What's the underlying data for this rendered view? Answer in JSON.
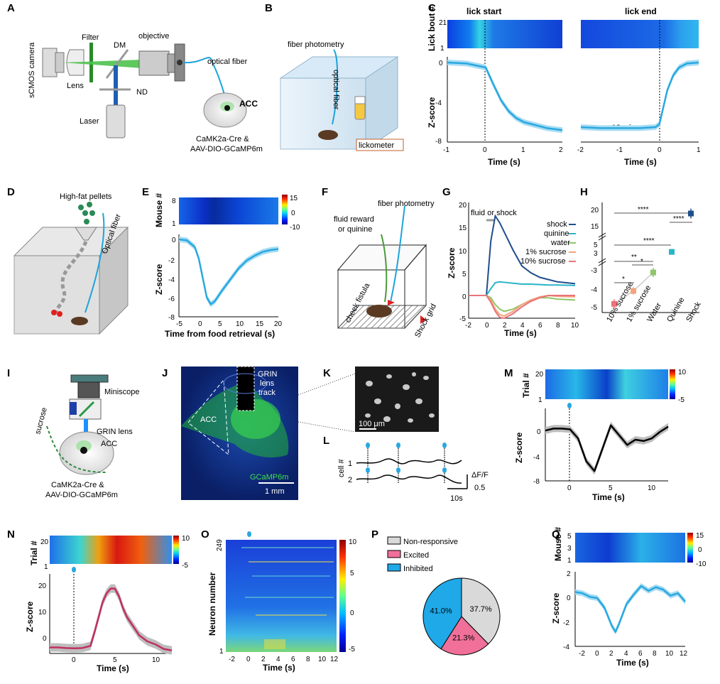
{
  "panels": {
    "A": "A",
    "B": "B",
    "C": "C",
    "D": "D",
    "E": "E",
    "F": "F",
    "G": "G",
    "H": "H",
    "I": "I",
    "J": "J",
    "K": "K",
    "L": "L",
    "M": "M",
    "N": "N",
    "O": "O",
    "P": "P",
    "Q": "Q"
  },
  "colors": {
    "trace": "#29a8e0",
    "band": "#a9dcf3",
    "dark": "#000000",
    "shock": "#1f4e8c",
    "quinine": "#2ab5c8",
    "water": "#8fc768",
    "sucrose1": "#f4a37c",
    "sucrose10": "#e8737a",
    "excited": "#f0709a",
    "inhibited": "#1fa9e8",
    "nonresp": "#d9d9d9"
  },
  "panel_a": {
    "camera": "sCMOS camera",
    "lens": "Lens",
    "filter": "Filter",
    "dm": "DM",
    "objective": "objective",
    "nd": "ND",
    "laser": "Laser",
    "fiber": "optical fiber",
    "region": "ACC",
    "construct1": "CaMK2a-Cre &",
    "construct2": "AAV-DIO-GCaMP6m"
  },
  "panel_b": {
    "photometry": "fiber photometry",
    "fiber": "optical fiber",
    "lickometer": "lickometer"
  },
  "panel_c": {
    "left_title": "lick start",
    "right_title": "lick end",
    "heat_ylabel": "Lick bout #",
    "heat_ticks": [
      "21",
      "1"
    ],
    "ylabel": "Z-score",
    "yticks": [
      "0",
      "-4",
      "-8"
    ],
    "xlabel": "Time (s)",
    "left_xticks": [
      "-1",
      "0",
      "1",
      "2"
    ],
    "right_xticks": [
      "-2",
      "-1",
      "0",
      "1"
    ],
    "annotation": "n = 12 mice"
  },
  "panel_d": {
    "pellets": "High-fat pellets",
    "fiber": "Optical fiber"
  },
  "panel_e": {
    "heat_ylabel": "Mouse #",
    "heat_ticks": [
      "8",
      "1"
    ],
    "cbar": [
      "15",
      "0",
      "-10"
    ],
    "ylabel": "Z-score",
    "yticks": [
      "0",
      "-2",
      "-4",
      "-6",
      "-8"
    ],
    "xticks": [
      "-5",
      "0",
      "5",
      "10",
      "15",
      "20"
    ],
    "xlabel": "Time from food retrieval (s)"
  },
  "panel_f": {
    "reward1": "fluid reward",
    "reward2": "or quinine",
    "photometry": "fiber photometry",
    "fistula": "cheek fistula",
    "grid": "Shock grid"
  },
  "panel_g": {
    "annotation": "fluid or shock",
    "ylabel": "Z-score",
    "yticks": [
      "20",
      "15",
      "10",
      "5",
      "0",
      "-5"
    ],
    "xticks": [
      "-2",
      "0",
      "2",
      "4",
      "6",
      "8",
      "10"
    ],
    "xlabel": "Time (s)",
    "legend": [
      "shock",
      "quinine",
      "water",
      "1% sucrose",
      "10% sucrose"
    ]
  },
  "panel_h": {
    "upper_ticks": [
      "20",
      "15"
    ],
    "mid_ticks": [
      "5",
      "3"
    ],
    "lower_ticks": [
      "-3",
      "-4",
      "-5"
    ],
    "categories": [
      "10% sucrose",
      "1% sucrose",
      "Water",
      "Quinine",
      "Shock"
    ],
    "sig": [
      "****",
      "****",
      "****",
      "**",
      "*",
      "*"
    ]
  },
  "panel_i": {
    "miniscope": "Miniscope",
    "sucrose": "sucrose",
    "grin": "GRIN lens",
    "region": "ACC",
    "construct1": "CaMK2a-Cre &",
    "construct2": "AAV-DIO-GCaMP6m"
  },
  "panel_j": {
    "track1": "GRIN",
    "track2": "lens",
    "track3": "track",
    "region": "ACC",
    "marker": "GCaMP6m",
    "scale": "1 mm"
  },
  "panel_k": {
    "scale": "100 μm"
  },
  "panel_l": {
    "ylabel": "cell #",
    "cells": [
      "1",
      "2"
    ],
    "scale_label": "ΔF/F",
    "scale_value": "0.5",
    "time_scale": "10s"
  },
  "panel_m": {
    "heat_ylabel": "Trial #",
    "heat_ticks": [
      "20",
      "1"
    ],
    "cbar": [
      "10",
      "-5"
    ],
    "ylabel": "Z-score",
    "yticks": [
      "0",
      "-4",
      "-8"
    ],
    "xticks": [
      "0",
      "5",
      "10"
    ],
    "xlabel": "Time (s)"
  },
  "panel_n": {
    "heat_ylabel": "Trial #",
    "heat_ticks": [
      "20",
      "1"
    ],
    "cbar": [
      "10",
      "-5"
    ],
    "ylabel": "Z-score",
    "yticks": [
      "20",
      "10",
      "0"
    ],
    "xticks": [
      "0",
      "5",
      "10"
    ],
    "xlabel": "Time (s)"
  },
  "panel_o": {
    "ylabel": "Neuron number",
    "yticks": [
      "249",
      "1"
    ],
    "xticks": [
      "-2",
      "0",
      "2",
      "4",
      "6",
      "8",
      "10",
      "12"
    ],
    "xlabel": "Time (s)",
    "cbar": [
      "10",
      "5",
      "0",
      "-5"
    ]
  },
  "panel_p": {
    "legend": [
      "Non-responsive",
      "Excited",
      "Inhibited"
    ]
  },
  "panel_q": {
    "heat_ylabel": "Mouse #",
    "heat_ticks": [
      "5",
      "3",
      "1"
    ],
    "cbar": [
      "15",
      "0",
      "-10"
    ],
    "ylabel": "Z-score",
    "yticks": [
      "2",
      "0",
      "-2",
      "-4"
    ],
    "xticks": [
      "-2",
      "0",
      "2",
      "4",
      "6",
      "8",
      "10",
      "12"
    ],
    "xlabel": "Time (s)"
  },
  "chart_data": [
    {
      "id": "C-left",
      "type": "line",
      "title": "lick start",
      "xlabel": "Time (s)",
      "ylabel": "Z-score",
      "xlim": [
        -1,
        2
      ],
      "ylim": [
        -8,
        0
      ],
      "x": [
        -1,
        -0.5,
        0,
        0.2,
        0.4,
        0.6,
        0.8,
        1.0,
        1.3,
        1.6,
        2.0
      ],
      "y": [
        0,
        -0.1,
        -0.5,
        -2.2,
        -3.8,
        -4.9,
        -5.6,
        -6.0,
        -6.3,
        -6.6,
        -6.8
      ]
    },
    {
      "id": "C-right",
      "type": "line",
      "title": "lick end",
      "xlabel": "Time (s)",
      "ylabel": "Z-score",
      "xlim": [
        -2,
        1
      ],
      "ylim": [
        -8,
        0
      ],
      "x": [
        -2,
        -1.5,
        -1,
        -0.5,
        -0.1,
        0,
        0.1,
        0.2,
        0.35,
        0.5,
        0.7,
        1.0
      ],
      "y": [
        -6.5,
        -6.6,
        -6.6,
        -6.6,
        -6.5,
        -6.2,
        -4.5,
        -2.8,
        -1.3,
        -0.5,
        -0.1,
        0
      ]
    },
    {
      "id": "E",
      "type": "line",
      "xlabel": "Time from food retrieval (s)",
      "ylabel": "Z-score",
      "xlim": [
        -5,
        20
      ],
      "ylim": [
        -8,
        0
      ],
      "x": [
        -5,
        -3,
        -1,
        0,
        1,
        2,
        3,
        4,
        6,
        8,
        10,
        12,
        14,
        16,
        18,
        20
      ],
      "y": [
        0,
        -0.1,
        -0.8,
        -2.0,
        -4.0,
        -6.0,
        -6.7,
        -6.4,
        -5.2,
        -4.1,
        -3.0,
        -2.2,
        -1.7,
        -1.3,
        -1.1,
        -1.0
      ]
    },
    {
      "id": "G",
      "type": "line",
      "xlabel": "Time (s)",
      "ylabel": "Z-score",
      "xlim": [
        -2,
        10
      ],
      "ylim": [
        -5,
        20
      ],
      "x": [
        -2,
        0,
        0.5,
        1,
        1.5,
        2,
        3,
        4,
        5,
        6,
        7,
        8,
        10
      ],
      "series": [
        {
          "name": "shock",
          "values": [
            0,
            0,
            12,
            17.5,
            16,
            14,
            10,
            6.5,
            5,
            4,
            3.5,
            3,
            2.6
          ]
        },
        {
          "name": "quinine",
          "values": [
            0,
            0,
            1.5,
            2.8,
            3.0,
            2.9,
            2.7,
            2.5,
            2.5,
            2.4,
            2.3,
            2.3,
            2.2
          ]
        },
        {
          "name": "water",
          "values": [
            0,
            0,
            -0.5,
            -2,
            -3,
            -3.5,
            -3,
            -2,
            -1,
            -0.5,
            -0.5,
            -0.8,
            -1
          ]
        },
        {
          "name": "1% sucrose",
          "values": [
            0,
            0,
            -1,
            -3,
            -4.2,
            -4.5,
            -3.5,
            -2,
            -1,
            -0.3,
            0,
            -0.2,
            -0.3
          ]
        },
        {
          "name": "10% sucrose",
          "values": [
            0,
            0,
            -1.5,
            -3.5,
            -4.8,
            -5,
            -4,
            -2.5,
            -1.3,
            -0.5,
            0,
            0,
            0
          ]
        }
      ]
    },
    {
      "id": "H",
      "type": "scatter",
      "categories": [
        "10% sucrose",
        "1% sucrose",
        "Water",
        "Quinine",
        "Shock"
      ],
      "values": [
        -4.8,
        -4.1,
        -3.1,
        3.4,
        19.0
      ],
      "errors": [
        0.25,
        0.2,
        0.25,
        0.4,
        1.5
      ]
    },
    {
      "id": "M",
      "type": "line",
      "xlabel": "Time (s)",
      "ylabel": "Z-score",
      "xlim": [
        -3,
        12
      ],
      "ylim": [
        -8,
        2
      ],
      "x": [
        -3,
        -2,
        -1,
        0,
        1,
        2,
        3,
        4,
        5,
        6,
        7,
        8,
        9,
        10,
        11,
        12
      ],
      "y": [
        -0.3,
        0,
        0,
        -0.1,
        -1.5,
        -5,
        -6.5,
        -3,
        0.5,
        -1,
        -2.5,
        -1.7,
        -1.9,
        -1.5,
        -0.5,
        0.3
      ]
    },
    {
      "id": "N",
      "type": "line",
      "xlabel": "Time (s)",
      "ylabel": "Z-score",
      "xlim": [
        -3,
        12
      ],
      "ylim": [
        -2,
        22
      ],
      "x": [
        -3,
        -2,
        -1,
        0,
        1,
        2,
        2.5,
        3,
        3.5,
        4,
        4.5,
        5,
        5.5,
        6,
        6.5,
        7,
        7.5,
        8,
        9,
        10,
        11,
        12
      ],
      "y": [
        0,
        0,
        -0.2,
        -0.3,
        -0.2,
        0.5,
        5,
        10,
        15,
        18,
        19.5,
        19.5,
        17,
        13,
        10,
        8,
        6,
        4,
        2,
        1,
        -0.5,
        -1
      ]
    },
    {
      "id": "P",
      "type": "pie",
      "labels": [
        "Non-responsive",
        "Excited",
        "Inhibited"
      ],
      "values": [
        37.7,
        21.3,
        41.0
      ],
      "value_labels": [
        "37.7%",
        "21.3%",
        "41.0%"
      ]
    },
    {
      "id": "Q",
      "type": "line",
      "xlabel": "Time (s)",
      "ylabel": "Z-score",
      "xlim": [
        -3,
        12
      ],
      "ylim": [
        -4,
        2
      ],
      "x": [
        -3,
        -2,
        -1,
        0,
        1,
        2,
        2.5,
        3,
        4,
        5,
        6,
        7,
        8,
        9,
        10,
        11,
        12
      ],
      "y": [
        0.5,
        0.4,
        0.1,
        0,
        -0.8,
        -2.3,
        -2.8,
        -2.1,
        -0.5,
        0.3,
        1.0,
        0.6,
        0.9,
        0.7,
        0.2,
        0.4,
        -0.3
      ]
    }
  ]
}
